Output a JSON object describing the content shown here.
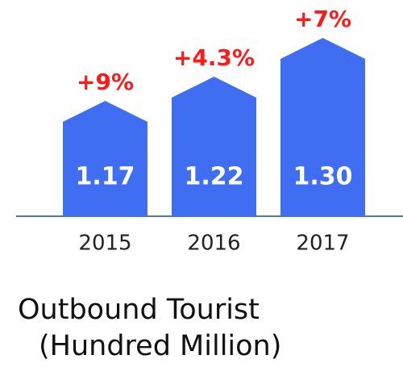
{
  "chart_data": {
    "type": "bar",
    "title": "Outbound Tourist",
    "subtitle": "(Hundred Million)",
    "categories": [
      "2015",
      "2016",
      "2017"
    ],
    "values": [
      1.17,
      1.22,
      1.3
    ],
    "value_labels": [
      "1.17",
      "1.22",
      "1.30"
    ],
    "annotations": [
      "+9%",
      "+4.3%",
      "+7%"
    ],
    "color": "#3f6ef2"
  }
}
